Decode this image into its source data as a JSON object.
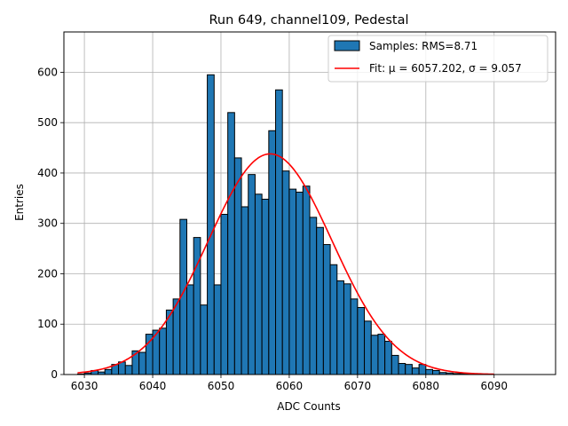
{
  "chart_data": {
    "type": "bar",
    "title": "Run 649, channel109, Pedestal",
    "xlabel": "ADC Counts",
    "ylabel": "Entries",
    "xlim": [
      6027,
      6099
    ],
    "ylim": [
      0,
      680
    ],
    "xticks": [
      6030,
      6040,
      6050,
      6060,
      6070,
      6080,
      6090
    ],
    "yticks": [
      0,
      100,
      200,
      300,
      400,
      500,
      600
    ],
    "grid": true,
    "legend_position": "top-right",
    "bin_width": 1,
    "bins_start": [
      6029,
      6030,
      6031,
      6032,
      6033,
      6034,
      6035,
      6036,
      6037,
      6038,
      6039,
      6040,
      6041,
      6042,
      6043,
      6044,
      6045,
      6046,
      6047,
      6048,
      6049,
      6050,
      6051,
      6052,
      6053,
      6054,
      6055,
      6056,
      6057,
      6058,
      6059,
      6060,
      6061,
      6062,
      6063,
      6064,
      6065,
      6066,
      6067,
      6068,
      6069,
      6070,
      6071,
      6072,
      6073,
      6074,
      6075,
      6076,
      6077,
      6078,
      6079,
      6080,
      6081,
      6082,
      6083,
      6084,
      6085,
      6086,
      6087,
      6088,
      6089,
      6090,
      6091,
      6092,
      6093,
      6094,
      6095,
      6096
    ],
    "counts": [
      1,
      3,
      8,
      5,
      10,
      20,
      25,
      18,
      47,
      44,
      80,
      88,
      92,
      128,
      150,
      308,
      178,
      272,
      138,
      595,
      178,
      318,
      520,
      430,
      333,
      397,
      358,
      348,
      484,
      565,
      404,
      368,
      362,
      374,
      312,
      292,
      258,
      218,
      186,
      180,
      150,
      133,
      106,
      78,
      80,
      66,
      38,
      22,
      20,
      13,
      20,
      10,
      8,
      4,
      3,
      2,
      2,
      1,
      1,
      1,
      0,
      0,
      0,
      0,
      0,
      0,
      0,
      0
    ],
    "series": [
      {
        "name": "Samples: RMS=8.71",
        "kind": "histogram",
        "color": "#1f77b4",
        "edgecolor": "#000000"
      },
      {
        "name": "Fit: μ = 6057.202, σ = 9.057",
        "kind": "gaussian-fit",
        "color": "#ff0000",
        "mu": 6057.202,
        "sigma": 9.057,
        "amplitude": 438,
        "x_range": [
          6029,
          6090
        ]
      }
    ]
  }
}
